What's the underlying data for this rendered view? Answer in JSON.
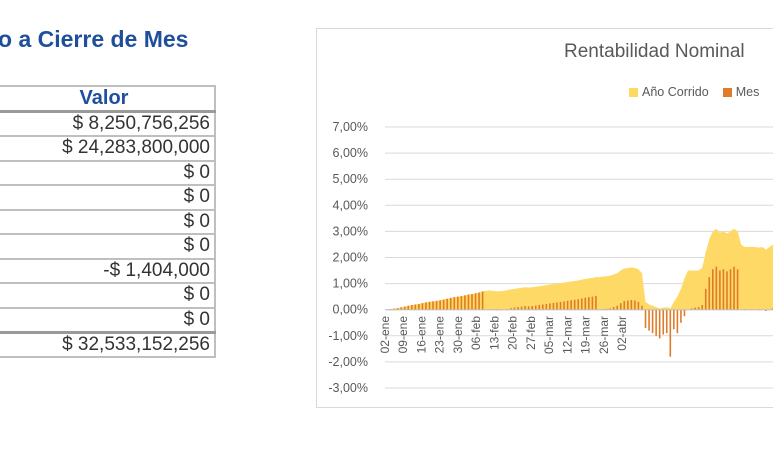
{
  "heading": "o a Cierre de Mes",
  "table": {
    "header": "Valor",
    "rows": [
      "$ 8,250,756,256",
      "$ 24,283,800,000",
      "$ 0",
      "$ 0",
      "$ 0",
      "$ 0",
      "-$ 1,404,000",
      "$ 0",
      "$ 0",
      "$ 32,533,152,256"
    ]
  },
  "colors": {
    "ytd": "#ffd966",
    "month": "#e07b2a",
    "grid": "#d9d9d9",
    "heading": "#1f4f9c"
  },
  "chart_data": {
    "type": "area",
    "title": "Rentabilidad Nominal",
    "legend": [
      "Año Corrido",
      "Mes"
    ],
    "legend_position": "top-right",
    "grid": true,
    "ylim": [
      -0.03,
      0.07
    ],
    "yticks": [
      "7,00%",
      "6,00%",
      "5,00%",
      "4,00%",
      "3,00%",
      "2,00%",
      "1,00%",
      "0,00%",
      "-1,00%",
      "-2,00%",
      "-3,00%"
    ],
    "xticks": [
      "02-ene",
      "09-ene",
      "16-ene",
      "23-ene",
      "30-ene",
      "06-feb",
      "13-feb",
      "20-feb",
      "27-feb",
      "05-mar",
      "12-mar",
      "19-mar",
      "26-mar",
      "02-abr"
    ],
    "series": [
      {
        "name": "Año Corrido",
        "values": [
          0,
          0.0002,
          0.0004,
          0.0006,
          0.0009,
          0.0012,
          0.0015,
          0.0018,
          0.002,
          0.0022,
          0.0025,
          0.0028,
          0.003,
          0.0032,
          0.0034,
          0.0036,
          0.0039,
          0.0042,
          0.0045,
          0.0048,
          0.005,
          0.0052,
          0.0055,
          0.0058,
          0.006,
          0.0063,
          0.0066,
          0.007,
          0.0072,
          0.0074,
          0.0072,
          0.007,
          0.0071,
          0.0072,
          0.0075,
          0.0078,
          0.008,
          0.0082,
          0.0084,
          0.0086,
          0.0085,
          0.0086,
          0.0088,
          0.009,
          0.0092,
          0.0094,
          0.0096,
          0.0098,
          0.01,
          0.0102,
          0.0104,
          0.0106,
          0.0108,
          0.011,
          0.0112,
          0.0115,
          0.0118,
          0.012,
          0.0122,
          0.0125,
          0.0125,
          0.0127,
          0.0128,
          0.013,
          0.0135,
          0.014,
          0.015,
          0.0158,
          0.016,
          0.0162,
          0.016,
          0.0155,
          0.014,
          0.003,
          0.002,
          0.0015,
          0.001,
          0.0005,
          0.0008,
          0.001,
          0.0005,
          0.003,
          0.005,
          0.008,
          0.012,
          0.015,
          0.015,
          0.015,
          0.015,
          0.016,
          0.022,
          0.027,
          0.03,
          0.031,
          0.0295,
          0.03,
          0.0292,
          0.03,
          0.031,
          0.03,
          0.025,
          0.024,
          0.024,
          0.0241,
          0.024,
          0.0238,
          0.024,
          0.023,
          0.024,
          0.025
        ]
      },
      {
        "name": "Mes",
        "values": [
          0,
          0.0002,
          0.0004,
          0.0006,
          0.0009,
          0.0012,
          0.0015,
          0.0018,
          0.002,
          0.0022,
          0.0025,
          0.0028,
          0.003,
          0.0032,
          0.0034,
          0.0036,
          0.0039,
          0.0042,
          0.0045,
          0.0048,
          0.005,
          0.0052,
          0.0055,
          0.0058,
          0.006,
          0.0063,
          0.0066,
          0.007,
          0.0,
          0.0,
          -0.0002,
          -0.0003,
          -0.0001,
          0.0,
          0.0003,
          0.0006,
          0.0008,
          0.001,
          0.0012,
          0.0014,
          0.0013,
          0.0014,
          0.0016,
          0.0018,
          0.002,
          0.0022,
          0.0024,
          0.0026,
          0.0028,
          0.003,
          0.0032,
          0.0034,
          0.0036,
          0.0038,
          0.004,
          0.0043,
          0.0046,
          0.0048,
          0.005,
          0.0053,
          0.0,
          0.0002,
          0.0003,
          0.0005,
          0.001,
          0.0015,
          0.0025,
          0.0033,
          0.0035,
          0.0037,
          0.0035,
          0.003,
          0.0015,
          -0.007,
          -0.008,
          -0.009,
          -0.01,
          -0.011,
          -0.0095,
          -0.009,
          -0.018,
          -0.0075,
          -0.009,
          -0.005,
          -0.0025,
          0.0,
          0.0005,
          0.0008,
          0.001,
          0.0018,
          0.008,
          0.0125,
          0.0155,
          0.0165,
          0.015,
          0.0155,
          0.0147,
          0.0155,
          0.0165,
          0.0155,
          0.0,
          -0.0002,
          0.0,
          0.0001,
          0.0,
          -0.0001,
          0.0,
          -0.0005,
          0.0,
          0.0005
        ]
      }
    ]
  }
}
